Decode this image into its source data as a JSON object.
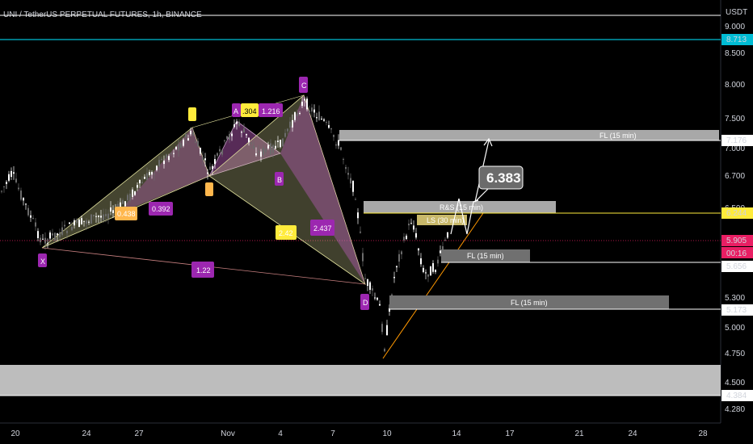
{
  "header": {
    "title": "UNI / TetherUS PERPETUAL FUTURES, 1h, BINANCE",
    "currency": "USDT"
  },
  "chart_data": {
    "type": "candlestick",
    "x_ticks": [
      "20",
      "24",
      "27",
      "Nov",
      "4",
      "7",
      "10",
      "14",
      "17",
      "21",
      "24",
      "28"
    ],
    "y_ticks": [
      "9.000",
      "8.500",
      "8.000",
      "7.500",
      "7.000",
      "6.700",
      "6.500",
      "5.300",
      "5.000",
      "4.750",
      "4.500",
      "4.280"
    ],
    "price_levels": [
      {
        "value": "8.713",
        "color": "#00bcd4"
      },
      {
        "value": "7.176",
        "color": "#ffffff"
      },
      {
        "value": "6.244",
        "color": "#ffeb3b"
      },
      {
        "value": "5.905",
        "color": "#e91e63"
      },
      {
        "value": "5.656",
        "color": "#ffffff"
      },
      {
        "value": "5.173",
        "color": "#ffffff"
      },
      {
        "value": "4.384",
        "color": "#ffffff"
      }
    ],
    "countdown": "00:16",
    "pattern_points": [
      {
        "label": "X",
        "value": 5.87
      },
      {
        "label": "A",
        "value": 7.53
      },
      {
        "label": "B",
        "value": 6.87
      },
      {
        "label": "C",
        "value": 7.72
      },
      {
        "label": "D",
        "value": 5.44
      }
    ],
    "pattern_ratios": [
      "0.438",
      "0.392",
      ".304",
      "1.216",
      "1.22",
      "2.42",
      "2.437"
    ],
    "zones": [
      "FL (15 min)",
      "R&S (15 min)",
      "LS (30 min)",
      "FL (15 min)",
      "FL (15 min)"
    ],
    "target_label": "6.383"
  }
}
